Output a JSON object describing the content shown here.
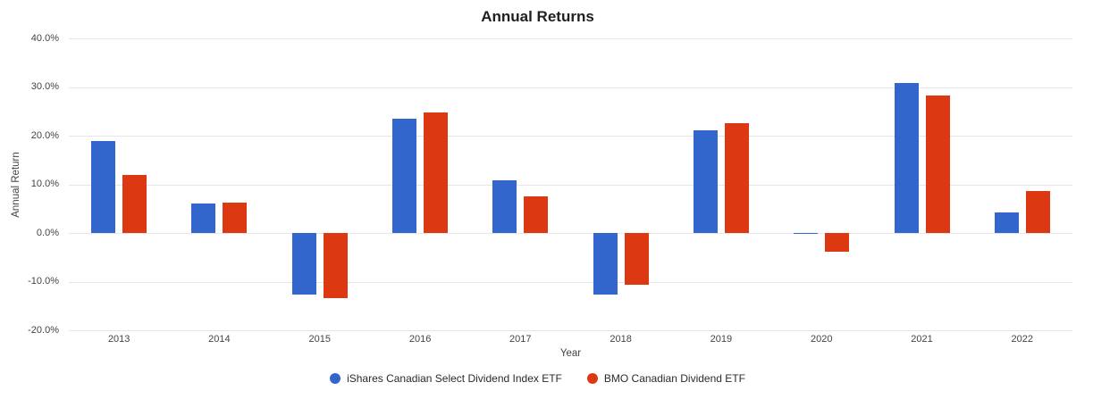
{
  "chart_data": {
    "type": "bar",
    "title": "Annual Returns",
    "xlabel": "Year",
    "ylabel": "Annual Return",
    "categories": [
      "2013",
      "2014",
      "2015",
      "2016",
      "2017",
      "2018",
      "2019",
      "2020",
      "2021",
      "2022"
    ],
    "series": [
      {
        "name": "iShares Canadian Select Dividend Index ETF",
        "key": "ishares-canadian-select-dividend-index-etf",
        "color": "#3366cc",
        "values": [
          18.9,
          6.0,
          -12.7,
          23.5,
          10.9,
          -12.7,
          21.2,
          -0.2,
          30.8,
          4.2
        ]
      },
      {
        "name": "BMO Canadian Dividend ETF",
        "key": "bmo-canadian-dividend-etf",
        "color": "#dc3912",
        "values": [
          12.0,
          6.2,
          -13.3,
          24.7,
          7.5,
          -10.7,
          22.6,
          -3.9,
          28.2,
          8.7
        ]
      }
    ],
    "ylim": [
      -20,
      40
    ],
    "ytick_values": [
      40,
      30,
      20,
      10,
      0,
      -10,
      -20
    ],
    "ytick_labels": [
      "40.0%",
      "30.0%",
      "20.0%",
      "10.0%",
      "0.0%",
      "-10.0%",
      "-20.0%"
    ],
    "grid": true,
    "legend_position": "bottom"
  },
  "colors": {
    "gridline": "#e6e6e6",
    "axis_text": "#444444",
    "title_text": "#1f1f1f"
  }
}
